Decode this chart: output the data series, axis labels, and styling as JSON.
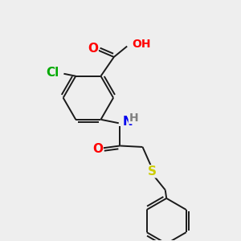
{
  "bg_color": "#eeeeee",
  "atom_colors": {
    "C": "#1a1a1a",
    "O": "#ff0000",
    "N": "#0000ee",
    "Cl": "#00aa00",
    "S": "#cccc00",
    "H": "#808080"
  },
  "bond_color": "#1a1a1a",
  "bond_width": 1.4,
  "fig_w": 3.0,
  "fig_h": 3.0,
  "dpi": 100
}
